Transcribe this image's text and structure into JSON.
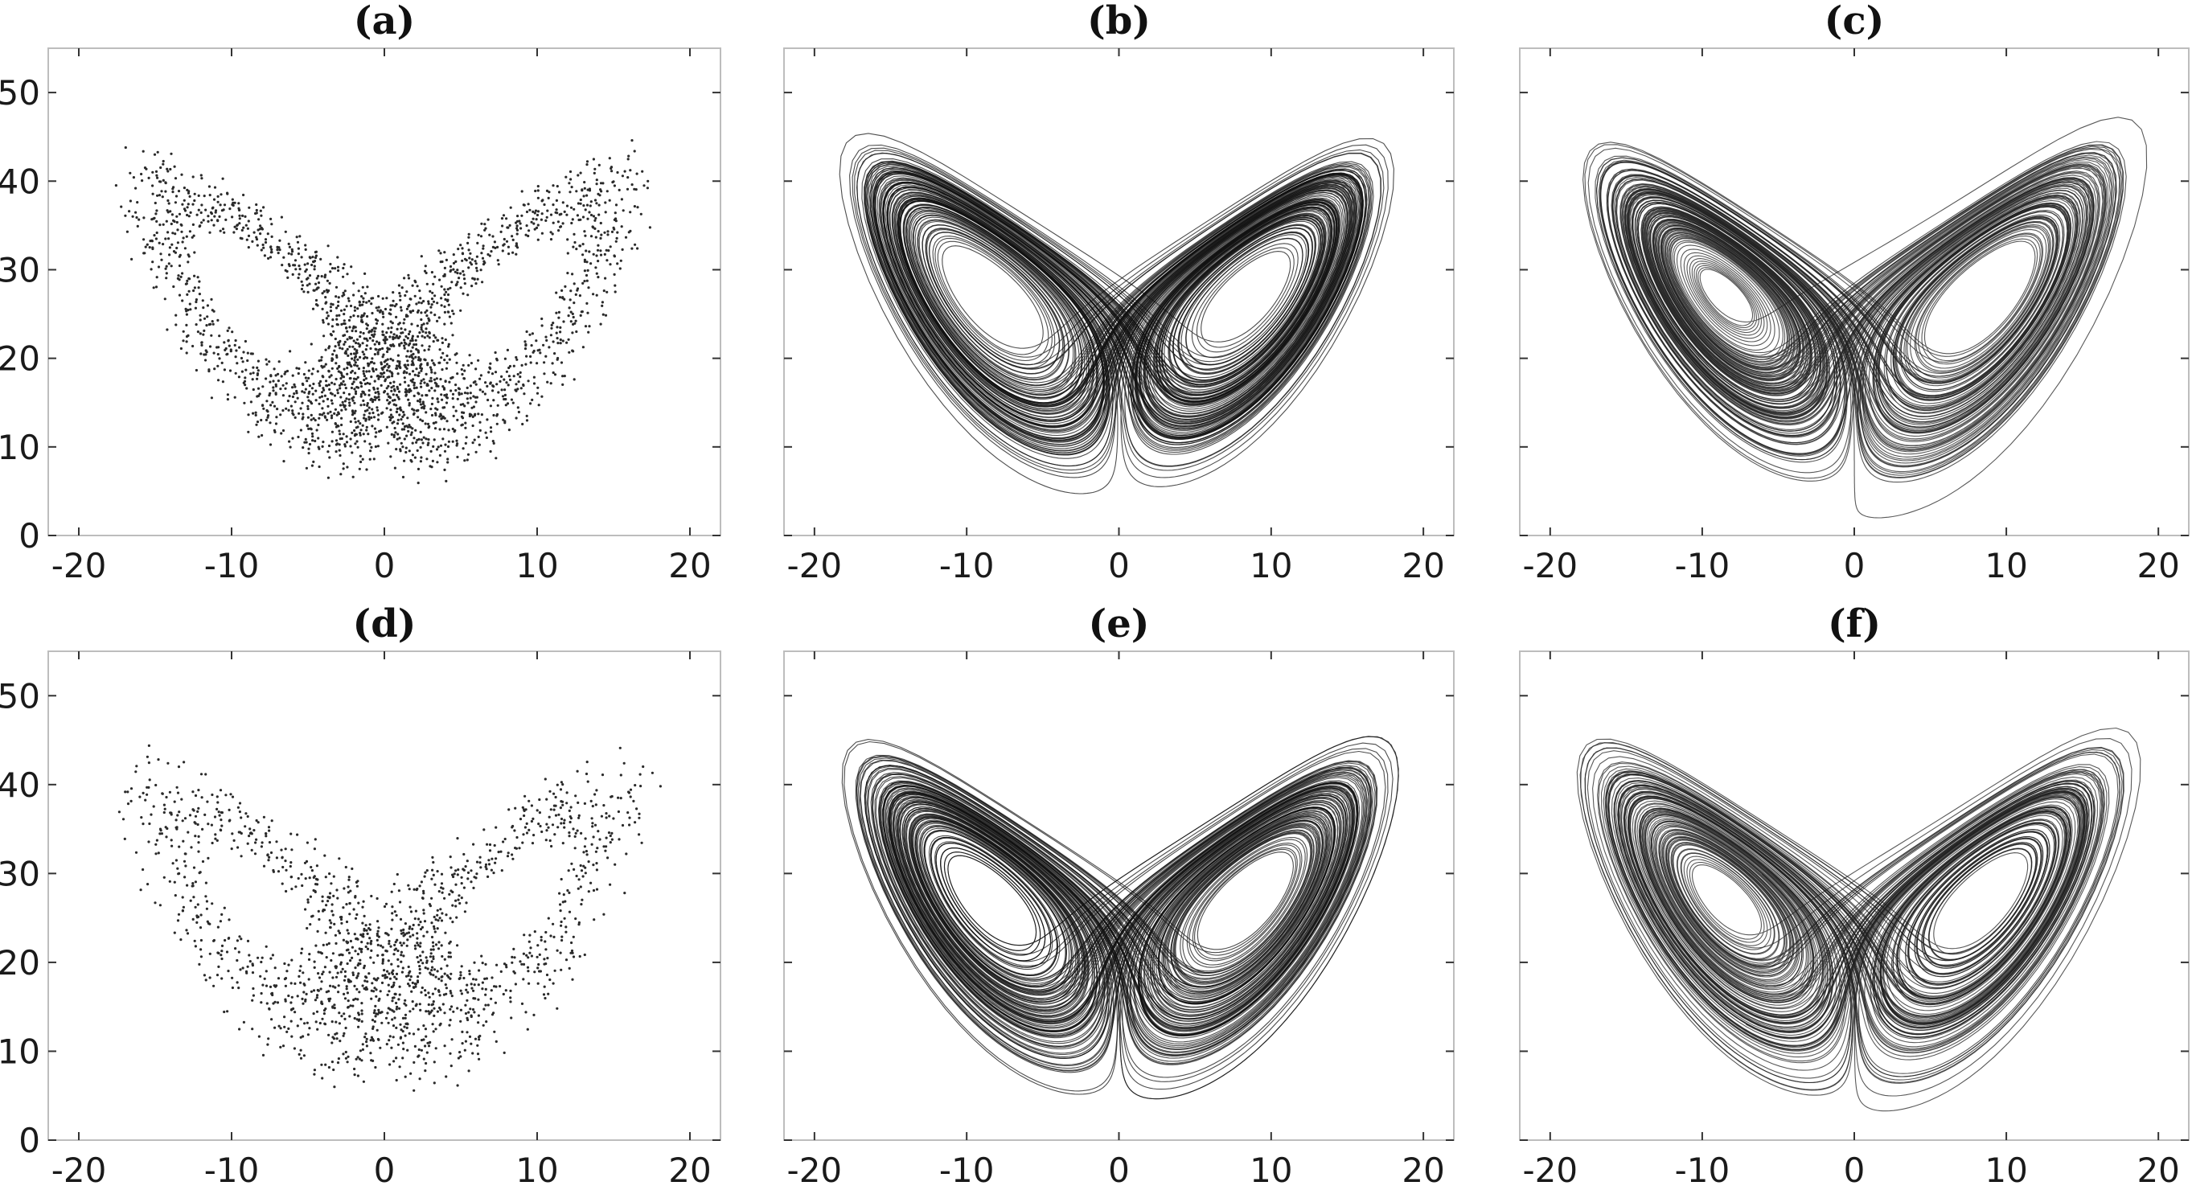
{
  "chart_data": [
    {
      "id": "a",
      "title": "(a)",
      "type": "scatter",
      "xlim": [
        -22,
        22
      ],
      "ylim": [
        0,
        55
      ],
      "xticks": [
        -20,
        -10,
        0,
        10,
        20
      ],
      "xtick_labels": [
        "-20",
        "-10",
        "0",
        "10",
        "20"
      ],
      "yticks": [
        0,
        10,
        20,
        30,
        40,
        50
      ],
      "ytick_labels": [
        "0",
        "10",
        "20",
        "30",
        "40",
        "50"
      ],
      "show_yticklabels": true,
      "color": "#2a2a2a",
      "attractor": {
        "sigma": 10,
        "rho": 28,
        "beta": 2.667,
        "dt": 0.01,
        "init": [
          1.0,
          1.0,
          20.0
        ],
        "stride": 6,
        "count": 2400
      }
    },
    {
      "id": "b",
      "title": "(b)",
      "type": "line",
      "xlim": [
        -22,
        22
      ],
      "ylim": [
        0,
        55
      ],
      "xticks": [
        -20,
        -10,
        0,
        10,
        20
      ],
      "xtick_labels": [
        "-20",
        "-10",
        "0",
        "10",
        "20"
      ],
      "yticks": [
        0,
        10,
        20,
        30,
        40,
        50
      ],
      "ytick_labels": [
        "0",
        "10",
        "20",
        "30",
        "40",
        "50"
      ],
      "show_yticklabels": false,
      "color": "#111111",
      "attractor": {
        "sigma": 10,
        "rho": 28,
        "beta": 2.667,
        "dt": 0.01,
        "init": [
          2.0,
          1.5,
          22.0
        ],
        "stride": 1,
        "count": 16000
      }
    },
    {
      "id": "c",
      "title": "(c)",
      "type": "line",
      "xlim": [
        -22,
        22
      ],
      "ylim": [
        0,
        55
      ],
      "xticks": [
        -20,
        -10,
        0,
        10,
        20
      ],
      "xtick_labels": [
        "-20",
        "-10",
        "0",
        "10",
        "20"
      ],
      "yticks": [
        0,
        10,
        20,
        30,
        40,
        50
      ],
      "ytick_labels": [
        "0",
        "10",
        "20",
        "30",
        "40",
        "50"
      ],
      "show_yticklabels": false,
      "color": "#222222",
      "attractor": {
        "sigma": 10,
        "rho": 28,
        "beta": 2.667,
        "dt": 0.01,
        "init": [
          -1.0,
          -1.2,
          18.0
        ],
        "stride": 1,
        "count": 16000
      }
    },
    {
      "id": "d",
      "title": "(d)",
      "type": "scatter",
      "xlim": [
        -22,
        22
      ],
      "ylim": [
        0,
        55
      ],
      "xticks": [
        -20,
        -10,
        0,
        10,
        20
      ],
      "xtick_labels": [
        "-20",
        "-10",
        "0",
        "10",
        "20"
      ],
      "yticks": [
        0,
        10,
        20,
        30,
        40,
        50
      ],
      "ytick_labels": [
        "0",
        "10",
        "20",
        "30",
        "40",
        "50"
      ],
      "show_yticklabels": true,
      "color": "#2a2a2a",
      "attractor": {
        "sigma": 10,
        "rho": 28,
        "beta": 2.667,
        "dt": 0.01,
        "init": [
          0.5,
          2.0,
          25.0
        ],
        "stride": 9,
        "count": 1600
      }
    },
    {
      "id": "e",
      "title": "(e)",
      "type": "line",
      "xlim": [
        -22,
        22
      ],
      "ylim": [
        0,
        55
      ],
      "xticks": [
        -20,
        -10,
        0,
        10,
        20
      ],
      "xtick_labels": [
        "-20",
        "-10",
        "0",
        "10",
        "20"
      ],
      "yticks": [
        0,
        10,
        20,
        30,
        40,
        50
      ],
      "ytick_labels": [
        "0",
        "10",
        "20",
        "30",
        "40",
        "50"
      ],
      "show_yticklabels": false,
      "color": "#111111",
      "attractor": {
        "sigma": 10,
        "rho": 28,
        "beta": 2.667,
        "dt": 0.01,
        "init": [
          3.0,
          -1.0,
          24.0
        ],
        "stride": 1,
        "count": 16000
      }
    },
    {
      "id": "f",
      "title": "(f)",
      "type": "line",
      "xlim": [
        -22,
        22
      ],
      "ylim": [
        0,
        55
      ],
      "xticks": [
        -20,
        -10,
        0,
        10,
        20
      ],
      "xtick_labels": [
        "-20",
        "-10",
        "0",
        "10",
        "20"
      ],
      "yticks": [
        0,
        10,
        20,
        30,
        40,
        50
      ],
      "ytick_labels": [
        "0",
        "10",
        "20",
        "30",
        "40",
        "50"
      ],
      "show_yticklabels": false,
      "color": "#222222",
      "attractor": {
        "sigma": 10,
        "rho": 28,
        "beta": 2.667,
        "dt": 0.01,
        "init": [
          -2.5,
          0.8,
          21.0
        ],
        "stride": 1,
        "count": 16000
      }
    }
  ]
}
